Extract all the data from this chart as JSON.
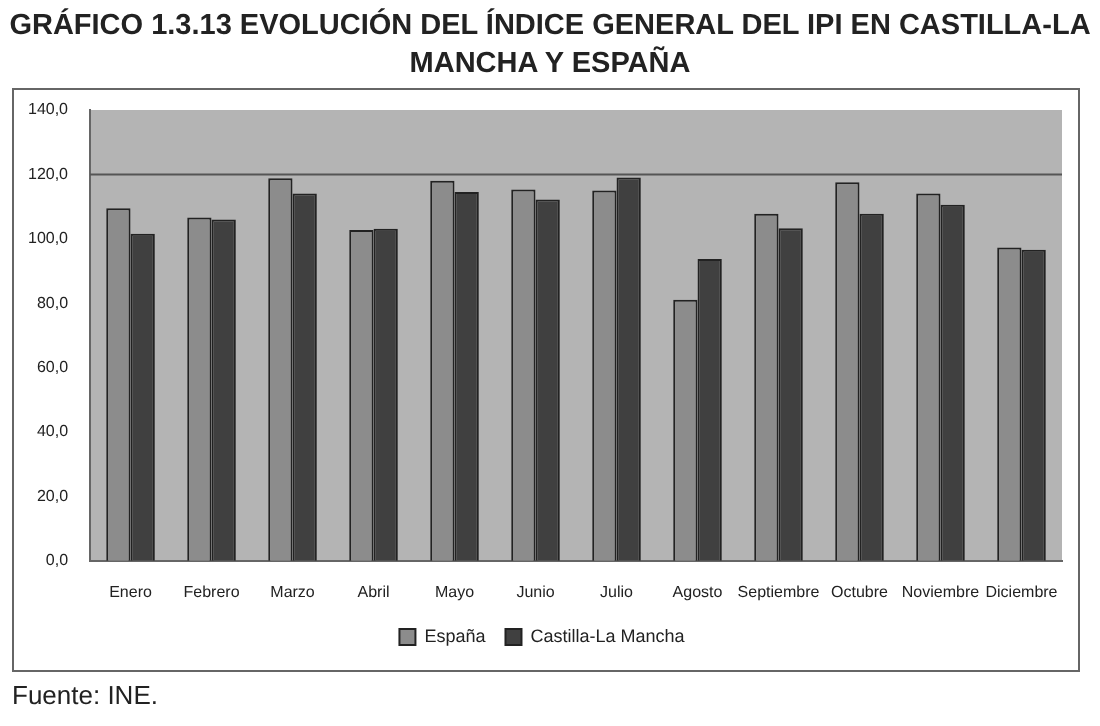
{
  "chart_data": {
    "type": "bar",
    "title": "GRÁFICO 1.3.13 EVOLUCIÓN DEL ÍNDICE GENERAL DEL IPI EN CASTILLA-LA MANCHA Y ESPAÑA",
    "categories": [
      "Enero",
      "Febrero",
      "Marzo",
      "Abril",
      "Mayo",
      "Junio",
      "Julio",
      "Agosto",
      "Septiembre",
      "Octubre",
      "Noviembre",
      "Diciembre"
    ],
    "series": [
      {
        "name": "España",
        "color": "#8c8c8c",
        "values": [
          109.5,
          106.6,
          118.8,
          102.7,
          118.0,
          115.3,
          115.0,
          81.1,
          107.8,
          117.6,
          114.1,
          97.3
        ]
      },
      {
        "name": "Castilla-La Mancha",
        "color": "#404040",
        "values": [
          101.6,
          106.0,
          114.1,
          103.1,
          114.5,
          112.2,
          119.0,
          93.7,
          103.3,
          107.8,
          110.6,
          96.6
        ]
      }
    ],
    "ylim": [
      0,
      140
    ],
    "yticks": [
      {
        "value": 0,
        "label": "0,0"
      },
      {
        "value": 20,
        "label": "20,0"
      },
      {
        "value": 40,
        "label": "40,0"
      },
      {
        "value": 60,
        "label": "60,0"
      },
      {
        "value": 80,
        "label": "80,0"
      },
      {
        "value": 100,
        "label": "100,0"
      },
      {
        "value": 120,
        "label": "120,0"
      },
      {
        "value": 140,
        "label": "140,0"
      }
    ],
    "ref_lines": [
      {
        "axis": "y",
        "value": 120,
        "color": "#555555"
      }
    ],
    "grid": false,
    "legend": "bottom",
    "annotations": [
      "Fuente: INE."
    ]
  }
}
